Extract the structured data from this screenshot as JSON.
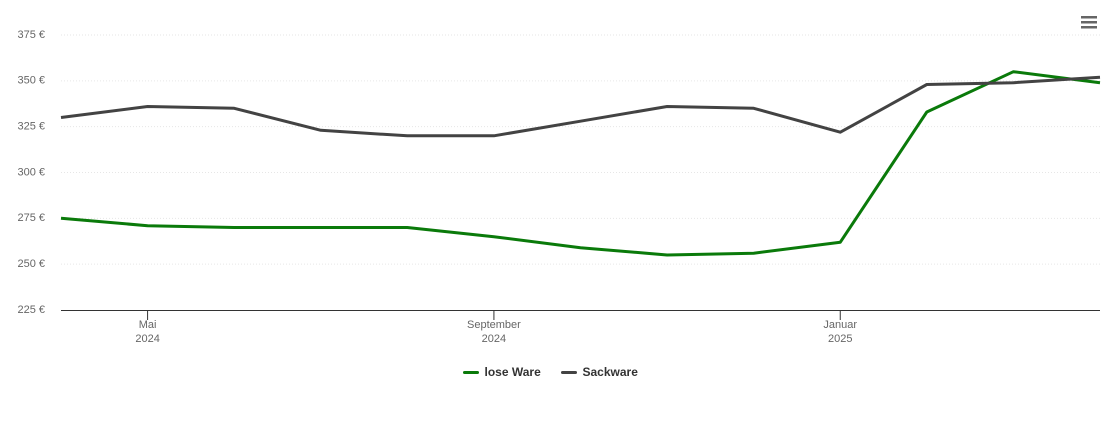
{
  "chart_data": {
    "type": "line",
    "x": [
      "2024-04",
      "2024-05",
      "2024-06",
      "2024-07",
      "2024-08",
      "2024-09",
      "2024-10",
      "2024-11",
      "2024-12",
      "2025-01",
      "2025-02",
      "2025-03",
      "2025-04"
    ],
    "series": [
      {
        "name": "lose Ware",
        "color": "#0a7a0a",
        "values": [
          275,
          271,
          270,
          270,
          270,
          265,
          259,
          255,
          256,
          262,
          333,
          355,
          349
        ]
      },
      {
        "name": "Sackware",
        "color": "#434343",
        "values": [
          330,
          336,
          335,
          323,
          320,
          320,
          328,
          336,
          335,
          322,
          348,
          349,
          352
        ]
      }
    ],
    "xlim": [
      "2024-04",
      "2025-04"
    ],
    "xticks": [
      {
        "value": "2024-05",
        "label": "Mai\n2024"
      },
      {
        "value": "2024-09",
        "label": "September\n2024"
      },
      {
        "value": "2025-01",
        "label": "Januar\n2025"
      }
    ],
    "ylim": [
      225,
      375
    ],
    "yticks": [
      {
        "value": 225,
        "label": "225 €"
      },
      {
        "value": 250,
        "label": "250 €"
      },
      {
        "value": 275,
        "label": "275 €"
      },
      {
        "value": 300,
        "label": "300 €"
      },
      {
        "value": 325,
        "label": "325 €"
      },
      {
        "value": 350,
        "label": "350 €"
      },
      {
        "value": 375,
        "label": "375 €"
      }
    ],
    "grid": true,
    "legend": "bottom"
  }
}
